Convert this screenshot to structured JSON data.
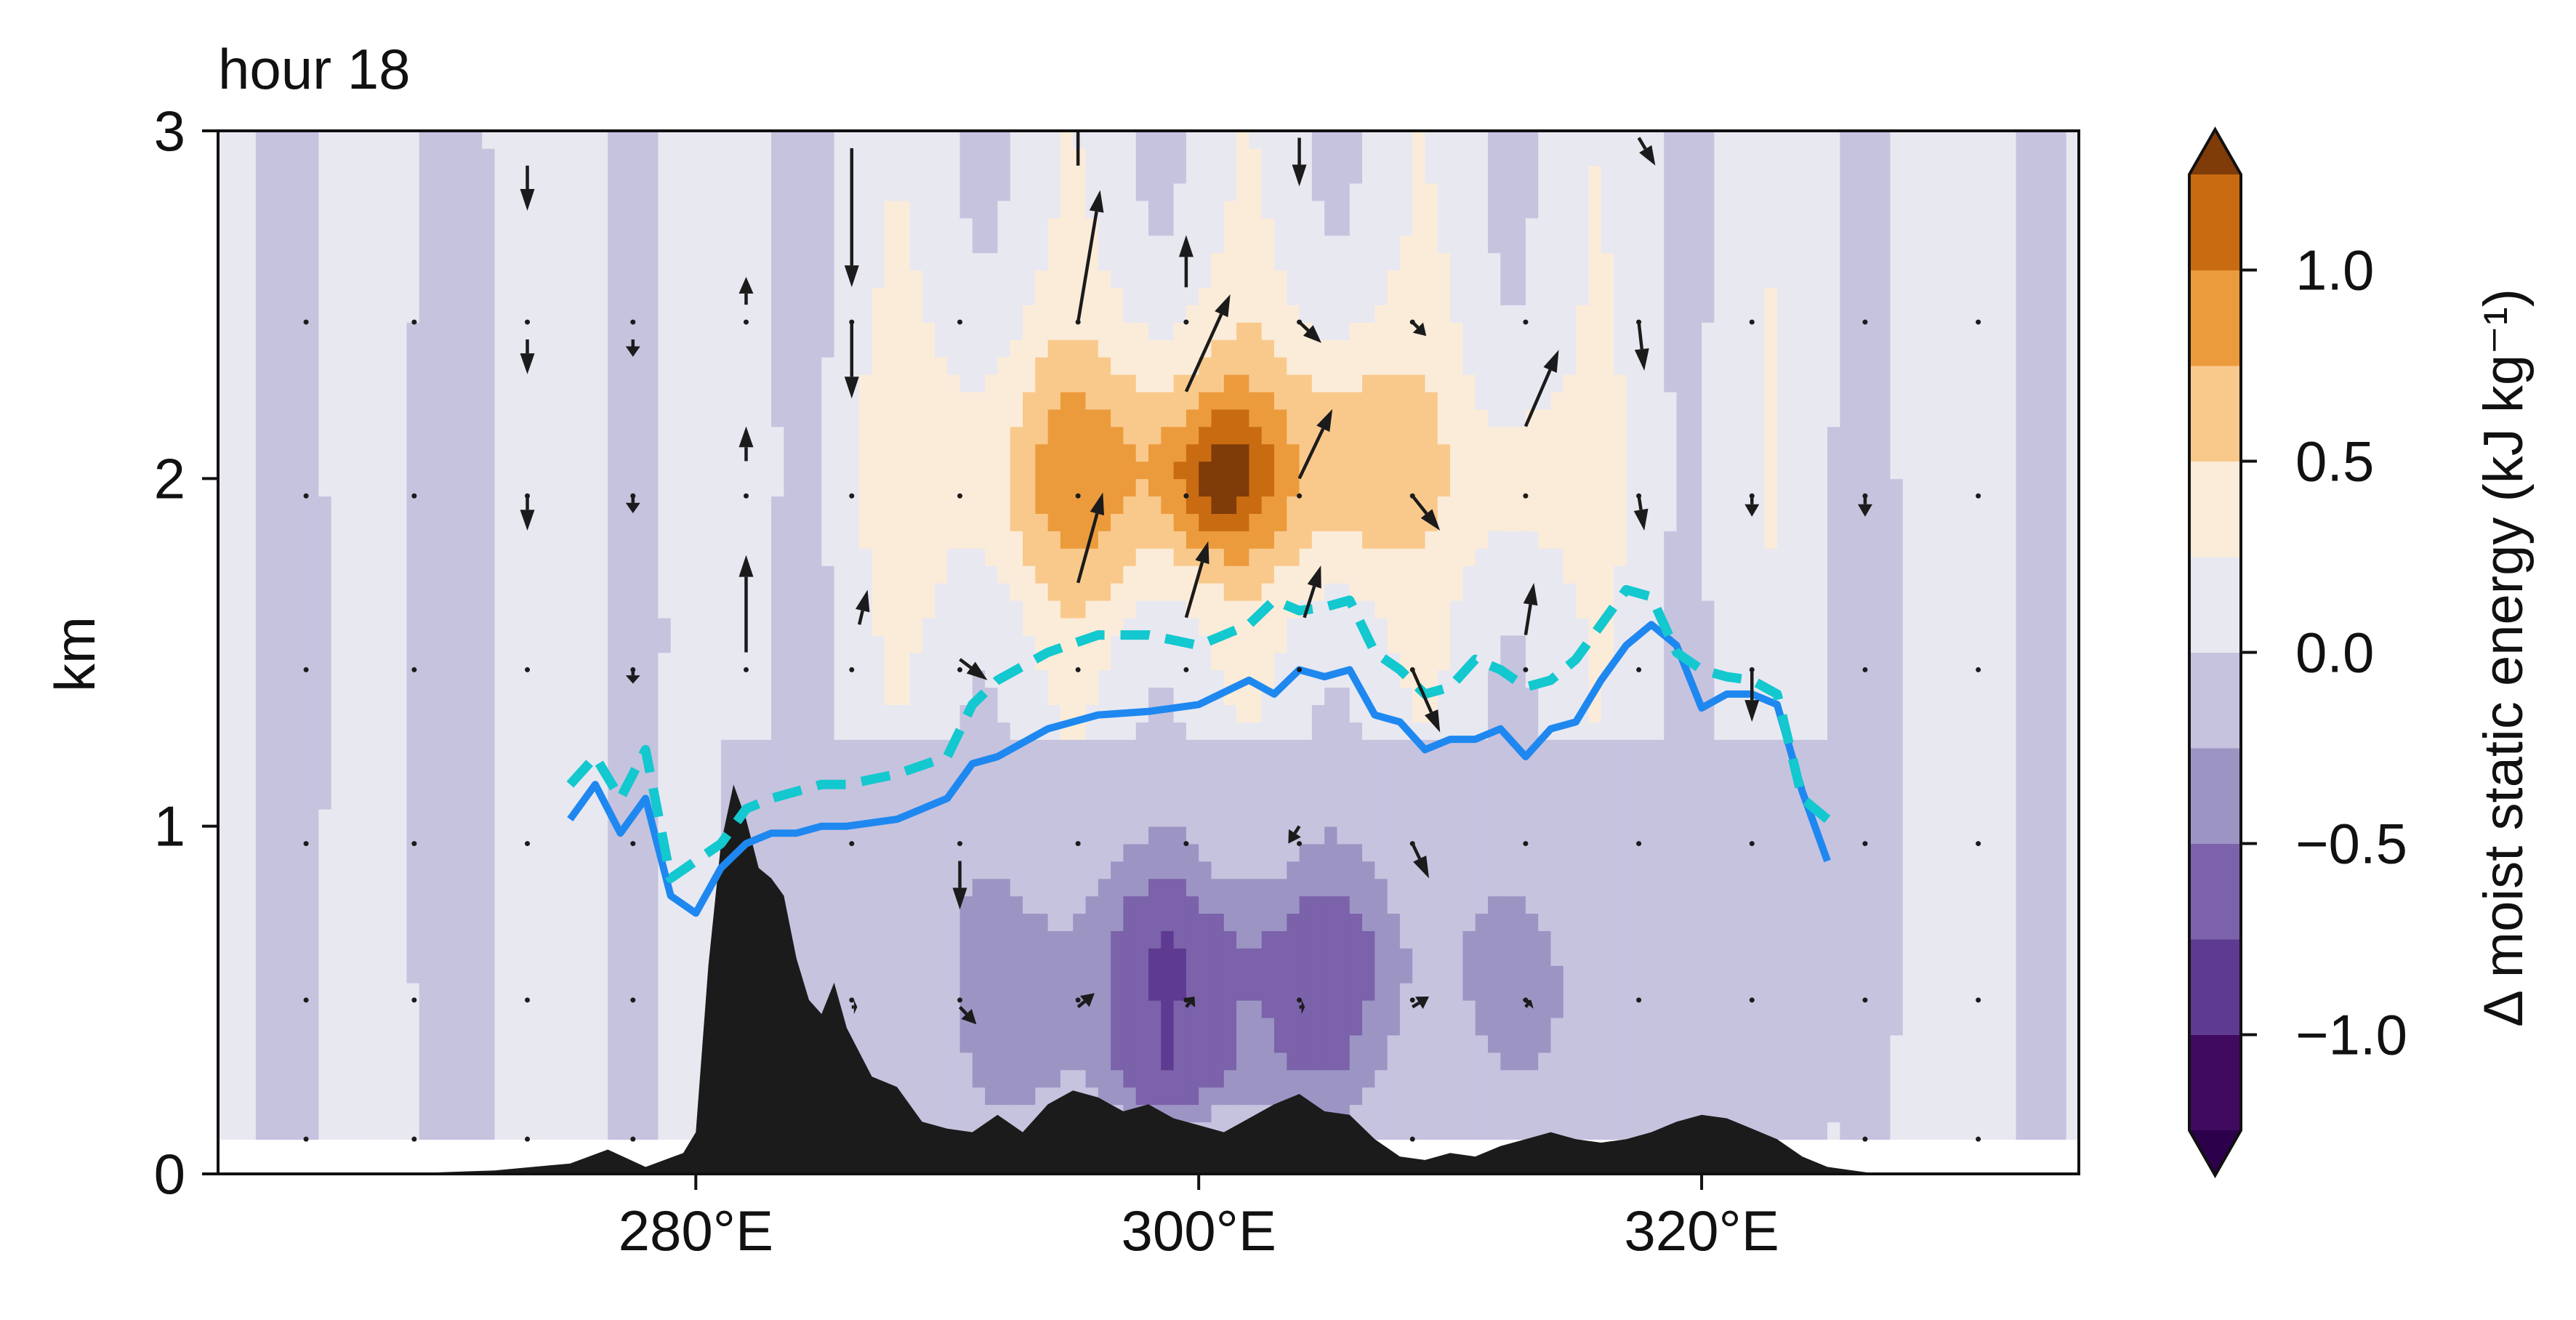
{
  "chart_data": {
    "type": "heatmap",
    "title": "hour 18",
    "xlabel": "",
    "ylabel": "km",
    "colorbar_label": "Δ moist static energy (kJ kg⁻¹)",
    "xlim": [
      261,
      335
    ],
    "ylim": [
      0,
      3
    ],
    "x_ticks": [
      {
        "value": 280,
        "label": "280°E"
      },
      {
        "value": 300,
        "label": "300°E"
      },
      {
        "value": 320,
        "label": "320°E"
      }
    ],
    "y_ticks": [
      {
        "value": 0,
        "label": "0"
      },
      {
        "value": 1,
        "label": "1"
      },
      {
        "value": 2,
        "label": "2"
      },
      {
        "value": 3,
        "label": "3"
      }
    ],
    "colorbar": {
      "levels": [
        -1.25,
        -1.0,
        -0.75,
        -0.5,
        -0.25,
        0.0,
        0.25,
        0.5,
        0.75,
        1.0,
        1.25
      ],
      "colors": [
        "#3f0a60",
        "#5e3a91",
        "#7b62aa",
        "#9c95c4",
        "#c6c3df",
        "#e8e8f1",
        "#fbecd9",
        "#f9c98c",
        "#ec9b3c",
        "#c86b11",
        "#984507"
      ],
      "under_color": "#2d004b",
      "over_color": "#7f3b08",
      "ticks": [
        {
          "value": 1.0,
          "label": "1.0"
        },
        {
          "value": 0.5,
          "label": "0.5"
        },
        {
          "value": 0.0,
          "label": "0.0"
        },
        {
          "value": -0.5,
          "label": "−0.5"
        },
        {
          "value": -1.0,
          "label": "−1.0"
        }
      ]
    },
    "field": {
      "background_level": 0.1,
      "features": [
        {
          "x": 300,
          "y": 2.05,
          "sx": 11,
          "sy": 0.42,
          "amp": 0.58
        },
        {
          "x": 300.8,
          "y": 2.0,
          "sx": 2.2,
          "sy": 0.2,
          "amp": 0.62
        },
        {
          "x": 306,
          "y": 2.05,
          "sx": 2.0,
          "sy": 0.32,
          "amp": 0.32
        },
        {
          "x": 295,
          "y": 1.95,
          "sx": 4.0,
          "sy": 0.35,
          "amp": 0.22
        },
        {
          "x": 313,
          "y": 2.0,
          "sx": 2.2,
          "sy": 0.2,
          "amp": 0.3
        },
        {
          "x": 301,
          "y": 0.6,
          "sx": 10.5,
          "sy": 0.35,
          "amp": -0.78
        },
        {
          "x": 300,
          "y": 0.28,
          "sx": 6.0,
          "sy": 0.15,
          "amp": -0.35
        },
        {
          "x": 293,
          "y": 0.3,
          "sx": 1.5,
          "sy": 0.12,
          "amp": -0.25
        },
        {
          "x": 314,
          "y": 0.5,
          "sx": 2.5,
          "sy": 0.25,
          "amp": -0.25
        },
        {
          "x": 268,
          "y": 1.5,
          "sx": 4.5,
          "sy": 1.6,
          "amp": -0.15
        },
        {
          "x": 282,
          "y": 2.0,
          "sx": 3.5,
          "sy": 1.3,
          "amp": -0.1
        },
        {
          "x": 327,
          "y": 1.2,
          "sx": 2.5,
          "sy": 0.9,
          "amp": -0.12
        }
      ],
      "cold_pool_x": [
        281,
        325
      ],
      "interior_level": -0.1
    },
    "terrain_km": {
      "x": [
        261,
        268,
        272,
        275,
        276.5,
        278,
        279.5,
        280,
        280.5,
        281,
        281.5,
        282,
        282.5,
        283,
        283.5,
        284,
        284.5,
        285,
        285.5,
        286,
        287,
        288,
        289,
        290,
        291,
        292,
        293,
        294,
        295,
        296,
        297,
        298,
        299,
        300,
        301,
        302,
        303,
        304,
        305,
        306,
        307,
        308,
        309,
        310,
        311,
        312,
        313,
        314,
        315,
        316,
        317,
        318,
        319,
        320,
        321,
        322,
        323,
        324,
        325,
        327,
        335
      ],
      "y": [
        0.0,
        0.0,
        0.01,
        0.03,
        0.07,
        0.02,
        0.06,
        0.12,
        0.6,
        0.95,
        1.12,
        1.02,
        0.88,
        0.85,
        0.8,
        0.62,
        0.5,
        0.46,
        0.55,
        0.42,
        0.28,
        0.25,
        0.15,
        0.13,
        0.12,
        0.17,
        0.12,
        0.2,
        0.24,
        0.22,
        0.18,
        0.2,
        0.16,
        0.14,
        0.12,
        0.16,
        0.2,
        0.23,
        0.18,
        0.17,
        0.1,
        0.05,
        0.04,
        0.06,
        0.05,
        0.08,
        0.1,
        0.12,
        0.1,
        0.09,
        0.1,
        0.12,
        0.15,
        0.17,
        0.16,
        0.13,
        0.1,
        0.05,
        0.02,
        0.0,
        0.0
      ]
    },
    "series": [
      {
        "color": "#1e88f0",
        "dash": "solid",
        "x": [
          275,
          276,
          277,
          278,
          279,
          280,
          281,
          282,
          283,
          284,
          285,
          286,
          288,
          290,
          291,
          292,
          294,
          296,
          298,
          300,
          302,
          303,
          304,
          305,
          306,
          307,
          308,
          309,
          310,
          311,
          312,
          313,
          314,
          315,
          316,
          317,
          318,
          319,
          320,
          321,
          322,
          323,
          324,
          325
        ],
        "y": [
          1.02,
          1.12,
          0.98,
          1.08,
          0.8,
          0.75,
          0.88,
          0.95,
          0.98,
          0.98,
          1.0,
          1.0,
          1.02,
          1.08,
          1.18,
          1.2,
          1.28,
          1.32,
          1.33,
          1.35,
          1.42,
          1.38,
          1.45,
          1.43,
          1.45,
          1.32,
          1.3,
          1.22,
          1.25,
          1.25,
          1.28,
          1.2,
          1.28,
          1.3,
          1.42,
          1.52,
          1.58,
          1.52,
          1.34,
          1.38,
          1.38,
          1.35,
          1.1,
          0.9
        ]
      },
      {
        "color": "#13c8cf",
        "dash": "dashed",
        "x": [
          275,
          276,
          277,
          278,
          279,
          280,
          281,
          282,
          283,
          284,
          285,
          286,
          288,
          290,
          291,
          292,
          294,
          296,
          298,
          300,
          302,
          303,
          304,
          305,
          306,
          307,
          308,
          309,
          310,
          311,
          312,
          313,
          314,
          315,
          316,
          317,
          318,
          319,
          320,
          321,
          322,
          323,
          324,
          325
        ],
        "y": [
          1.12,
          1.2,
          1.08,
          1.22,
          0.85,
          0.9,
          0.95,
          1.05,
          1.08,
          1.1,
          1.12,
          1.12,
          1.15,
          1.2,
          1.35,
          1.42,
          1.5,
          1.55,
          1.55,
          1.52,
          1.58,
          1.65,
          1.62,
          1.63,
          1.65,
          1.5,
          1.45,
          1.38,
          1.4,
          1.48,
          1.45,
          1.4,
          1.42,
          1.48,
          1.58,
          1.68,
          1.66,
          1.5,
          1.45,
          1.43,
          1.42,
          1.38,
          1.08,
          1.02
        ]
      }
    ],
    "wind_vectors": [
      {
        "x": 273.3,
        "y": 2.9,
        "u": 0,
        "w": -0.13
      },
      {
        "x": 273.3,
        "y": 2.4,
        "u": 0,
        "w": -0.1
      },
      {
        "x": 273.3,
        "y": 1.95,
        "u": 0,
        "w": -0.1
      },
      {
        "x": 277.5,
        "y": 2.4,
        "u": 0,
        "w": -0.05
      },
      {
        "x": 277.5,
        "y": 1.95,
        "u": 0,
        "w": -0.05
      },
      {
        "x": 277.5,
        "y": 1.45,
        "u": 0,
        "w": -0.04
      },
      {
        "x": 282.0,
        "y": 2.5,
        "u": 0,
        "w": 0.08
      },
      {
        "x": 282.0,
        "y": 2.05,
        "u": 0,
        "w": 0.1
      },
      {
        "x": 282.0,
        "y": 1.5,
        "u": 0,
        "w": 0.28
      },
      {
        "x": 286.2,
        "y": 2.95,
        "u": 0,
        "w": -0.4
      },
      {
        "x": 286.2,
        "y": 2.45,
        "u": 0,
        "w": -0.22
      },
      {
        "x": 286.5,
        "y": 1.58,
        "u": 0.3,
        "w": 0.1
      },
      {
        "x": 290.5,
        "y": 1.48,
        "u": 1.0,
        "w": -0.06
      },
      {
        "x": 290.5,
        "y": 0.9,
        "u": 0,
        "w": -0.14
      },
      {
        "x": 295.2,
        "y": 2.45,
        "u": 0.8,
        "w": 0.38
      },
      {
        "x": 295.2,
        "y": 1.7,
        "u": 0.9,
        "w": 0.26
      },
      {
        "x": 295.2,
        "y": 2.9,
        "u": 0,
        "w": 0.33
      },
      {
        "x": 299.5,
        "y": 2.55,
        "u": 0,
        "w": 0.15
      },
      {
        "x": 299.5,
        "y": 1.6,
        "u": 0.8,
        "w": 0.22
      },
      {
        "x": 299.5,
        "y": 2.25,
        "u": 1.6,
        "w": 0.28
      },
      {
        "x": 304,
        "y": 2.98,
        "u": 0,
        "w": -0.14
      },
      {
        "x": 304,
        "y": 2.45,
        "u": 0.8,
        "w": -0.06
      },
      {
        "x": 304,
        "y": 2.0,
        "u": 1.2,
        "w": 0.2
      },
      {
        "x": 304.2,
        "y": 1.6,
        "u": 0.6,
        "w": 0.15
      },
      {
        "x": 304,
        "y": 1.0,
        "u": -0.4,
        "w": -0.05
      },
      {
        "x": 308.5,
        "y": 2.45,
        "u": 0.5,
        "w": -0.04
      },
      {
        "x": 308.5,
        "y": 1.95,
        "u": 1.0,
        "w": -0.1
      },
      {
        "x": 308.5,
        "y": 1.45,
        "u": 1.0,
        "w": -0.18
      },
      {
        "x": 308.5,
        "y": 0.95,
        "u": 0.6,
        "w": -0.1
      },
      {
        "x": 313,
        "y": 2.15,
        "u": 1.2,
        "w": 0.22
      },
      {
        "x": 313,
        "y": 1.55,
        "u": 0.3,
        "w": 0.15
      },
      {
        "x": 317.5,
        "y": 2.98,
        "u": 0.6,
        "w": -0.08
      },
      {
        "x": 317.5,
        "y": 2.45,
        "u": 0.2,
        "w": -0.14
      },
      {
        "x": 317.5,
        "y": 1.95,
        "u": 0.2,
        "w": -0.1
      },
      {
        "x": 322,
        "y": 1.95,
        "u": 0,
        "w": -0.06
      },
      {
        "x": 322,
        "y": 1.45,
        "u": 0,
        "w": -0.15
      },
      {
        "x": 326.5,
        "y": 1.95,
        "u": 0,
        "w": -0.06
      },
      {
        "x": 290.5,
        "y": 0.48,
        "u": 0.6,
        "w": -0.05
      },
      {
        "x": 295.2,
        "y": 0.48,
        "u": 0.6,
        "w": 0.04
      },
      {
        "x": 299.5,
        "y": 0.48,
        "u": 0.3,
        "w": 0.03
      },
      {
        "x": 308.5,
        "y": 0.48,
        "u": 0.6,
        "w": 0.03
      },
      {
        "x": 313,
        "y": 0.48,
        "u": 0.2,
        "w": 0.02
      },
      {
        "x": 304,
        "y": 0.48,
        "u": 0.2,
        "w": 0.0
      },
      {
        "x": 286.2,
        "y": 0.48,
        "u": 0.2,
        "w": 0.0
      }
    ],
    "dot_grid": {
      "x": [
        264.5,
        268.8,
        273.3,
        277.5,
        282.0,
        286.2,
        290.5,
        295.2,
        299.5,
        304.0,
        308.5,
        313.0,
        317.5,
        322.0,
        326.5,
        331.0
      ],
      "y": [
        0.1,
        0.5,
        0.95,
        1.45,
        1.95,
        2.45
      ]
    }
  }
}
